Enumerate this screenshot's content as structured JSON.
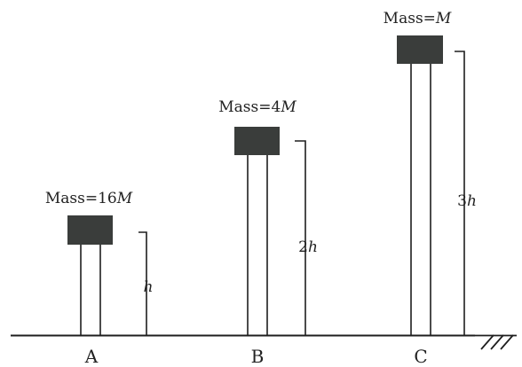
{
  "objects": [
    {
      "id": "A",
      "mass_text": "Mass=16",
      "mass_var": "M",
      "height_prefix": "",
      "height_var": "h",
      "height_multiplier": 1,
      "base_label": "A"
    },
    {
      "id": "B",
      "mass_text": "Mass=4",
      "mass_var": "M",
      "height_prefix": "2",
      "height_var": "h",
      "height_multiplier": 2,
      "base_label": "B"
    },
    {
      "id": "C",
      "mass_text": "Mass=",
      "mass_var": "M",
      "height_prefix": "3",
      "height_var": "h",
      "height_multiplier": 3,
      "base_label": "C"
    }
  ],
  "colors": {
    "block": "#3a3d3b",
    "line": "#1e1e1e",
    "text": "#222222"
  }
}
